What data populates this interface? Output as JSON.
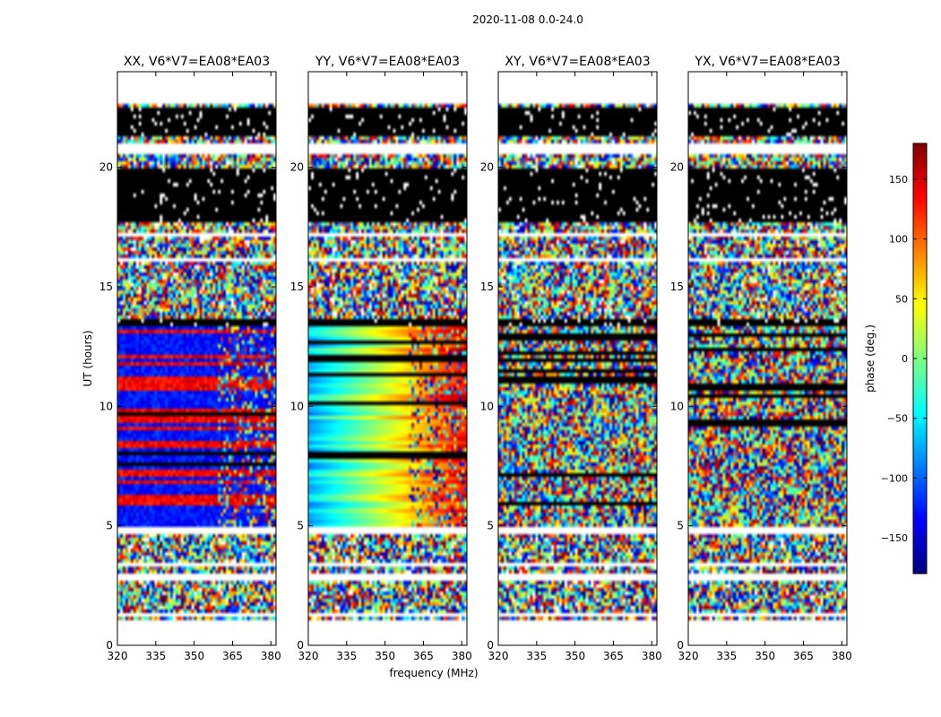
{
  "figure": {
    "suptitle": "2020-11-08 0.0-24.0",
    "xlabel": "frequency (MHz)",
    "ylabel": "UT (hours)"
  },
  "colorbar": {
    "label": "phase (deg.)",
    "range": [
      -180,
      180
    ],
    "ticks": [
      -150,
      -100,
      -50,
      0,
      50,
      100,
      150
    ],
    "tick_labels": [
      "−150",
      "−100",
      "−50",
      "0",
      "50",
      "100",
      "150"
    ],
    "colormap": "jet",
    "colors": [
      "#00007f",
      "#0000ff",
      "#007fff",
      "#00ffff",
      "#7fff7f",
      "#ffff00",
      "#ff7f00",
      "#ff0000",
      "#7f0000"
    ]
  },
  "chart_data": [
    {
      "type": "heatmap",
      "title": "XX, V6*V7=EA08*EA03",
      "polarization": "XX",
      "xlim": [
        320,
        382
      ],
      "ylim": [
        0,
        24
      ],
      "xticks": [
        320,
        335,
        350,
        365,
        380
      ],
      "yticks": [
        0,
        5,
        10,
        15,
        20
      ],
      "pattern": "coherent_blue_red"
    },
    {
      "type": "heatmap",
      "title": "YY, V6*V7=EA08*EA03",
      "polarization": "YY",
      "xlim": [
        320,
        382
      ],
      "ylim": [
        0,
        24
      ],
      "xticks": [
        320,
        335,
        350,
        365,
        380
      ],
      "yticks": [
        0,
        5,
        10,
        15,
        20
      ],
      "pattern": "coherent_gradient"
    },
    {
      "type": "heatmap",
      "title": "XY, V6*V7=EA08*EA03",
      "polarization": "XY",
      "xlim": [
        320,
        382
      ],
      "ylim": [
        0,
        24
      ],
      "xticks": [
        320,
        335,
        350,
        365,
        380
      ],
      "yticks": [
        0,
        5,
        10,
        15,
        20
      ],
      "pattern": "noise"
    },
    {
      "type": "heatmap",
      "title": "YX, V6*V7=EA08*EA03",
      "polarization": "YX",
      "xlim": [
        320,
        382
      ],
      "ylim": [
        0,
        24
      ],
      "xticks": [
        320,
        335,
        350,
        365,
        380
      ],
      "yticks": [
        0,
        5,
        10,
        15,
        20
      ],
      "pattern": "noise"
    }
  ],
  "time_structure": {
    "blank_ranges_hours": [
      [
        0,
        0.85
      ],
      [
        0.95,
        1.02
      ],
      [
        1.25,
        1.32
      ],
      [
        2.75,
        3.05
      ],
      [
        3.35,
        3.42
      ],
      [
        3.55,
        3.65
      ],
      [
        4.6,
        4.95
      ],
      [
        16.0,
        16.22
      ],
      [
        17.15,
        17.3
      ],
      [
        20.6,
        21.05
      ],
      [
        22.6,
        24
      ]
    ],
    "black_ranges_hours": [
      [
        17.7,
        20.0
      ],
      [
        21.35,
        22.55
      ],
      [
        13.35,
        13.6
      ]
    ]
  }
}
